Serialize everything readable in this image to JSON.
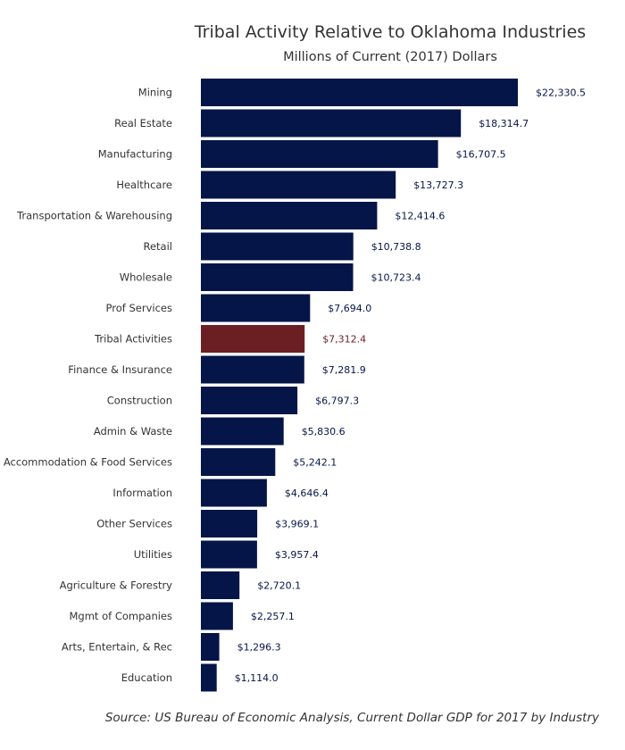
{
  "chart_data": {
    "type": "bar",
    "orientation": "horizontal",
    "title": "Tribal Activity Relative to Oklahoma Industries",
    "subtitle": "Millions of Current (2017) Dollars",
    "source": "Source: US Bureau of Economic Analysis, Current Dollar GDP for 2017 by Industry",
    "grid": false,
    "legend": "none",
    "xlim": [
      0,
      22330.5
    ],
    "categories": [
      "Mining",
      "Real Estate",
      "Manufacturing",
      "Healthcare",
      "Transportation & Warehousing",
      "Retail",
      "Wholesale",
      "Prof Services",
      "Tribal Activities",
      "Finance & Insurance",
      "Construction",
      "Admin & Waste",
      "Accommodation & Food Services",
      "Information",
      "Other Services",
      "Utilities",
      "Agriculture & Forestry",
      "Mgmt of Companies",
      "Arts, Entertain, & Rec",
      "Education"
    ],
    "values": [
      22330.5,
      18314.7,
      16707.5,
      13727.3,
      12414.6,
      10738.8,
      10723.4,
      7694.0,
      7312.4,
      7281.9,
      6797.3,
      5830.6,
      5242.1,
      4646.4,
      3969.1,
      3957.4,
      2720.1,
      2257.1,
      1296.3,
      1114.0
    ],
    "value_labels": [
      "$22,330.5",
      "$18,314.7",
      "$16,707.5",
      "$13,727.3",
      "$12,414.6",
      "$10,738.8",
      "$10,723.4",
      "$7,694.0",
      "$7,312.4",
      "$7,281.9",
      "$6,797.3",
      "$5,830.6",
      "$5,242.1",
      "$4,646.4",
      "$3,969.1",
      "$3,957.4",
      "$2,720.1",
      "$2,257.1",
      "$1,296.3",
      "$1,114.0"
    ],
    "highlight_category": "Tribal Activities",
    "colors": {
      "bar": "#061548",
      "highlight": "#6b1f23",
      "label": "#061548",
      "highlight_label": "#6b1f23"
    }
  }
}
